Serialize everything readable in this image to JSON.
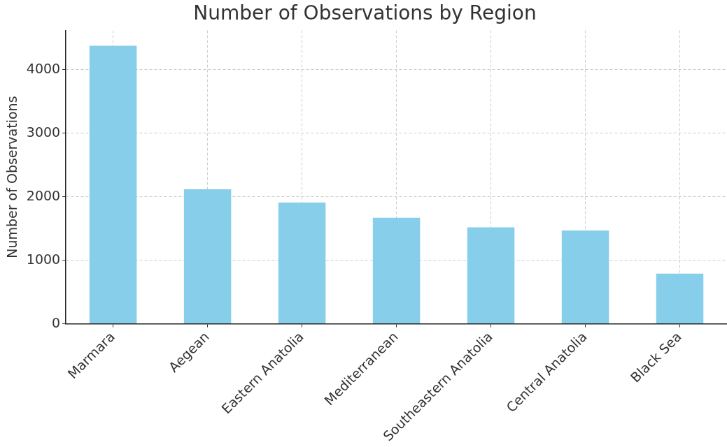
{
  "chart_data": {
    "type": "bar",
    "title": "Number of Observations by Region",
    "ylabel": "Number of Observations",
    "categories": [
      "Marmara",
      "Aegean",
      "Eastern Anatolia",
      "Mediterranean",
      "Southeastern Anatolia",
      "Central Anatolia",
      "Black Sea"
    ],
    "values": [
      4380,
      2120,
      1910,
      1670,
      1520,
      1470,
      790
    ],
    "color": "#87ceeb",
    "ylim": [
      0,
      4620
    ],
    "yticks": [
      0,
      1000,
      2000,
      3000,
      4000
    ],
    "grid": true
  }
}
